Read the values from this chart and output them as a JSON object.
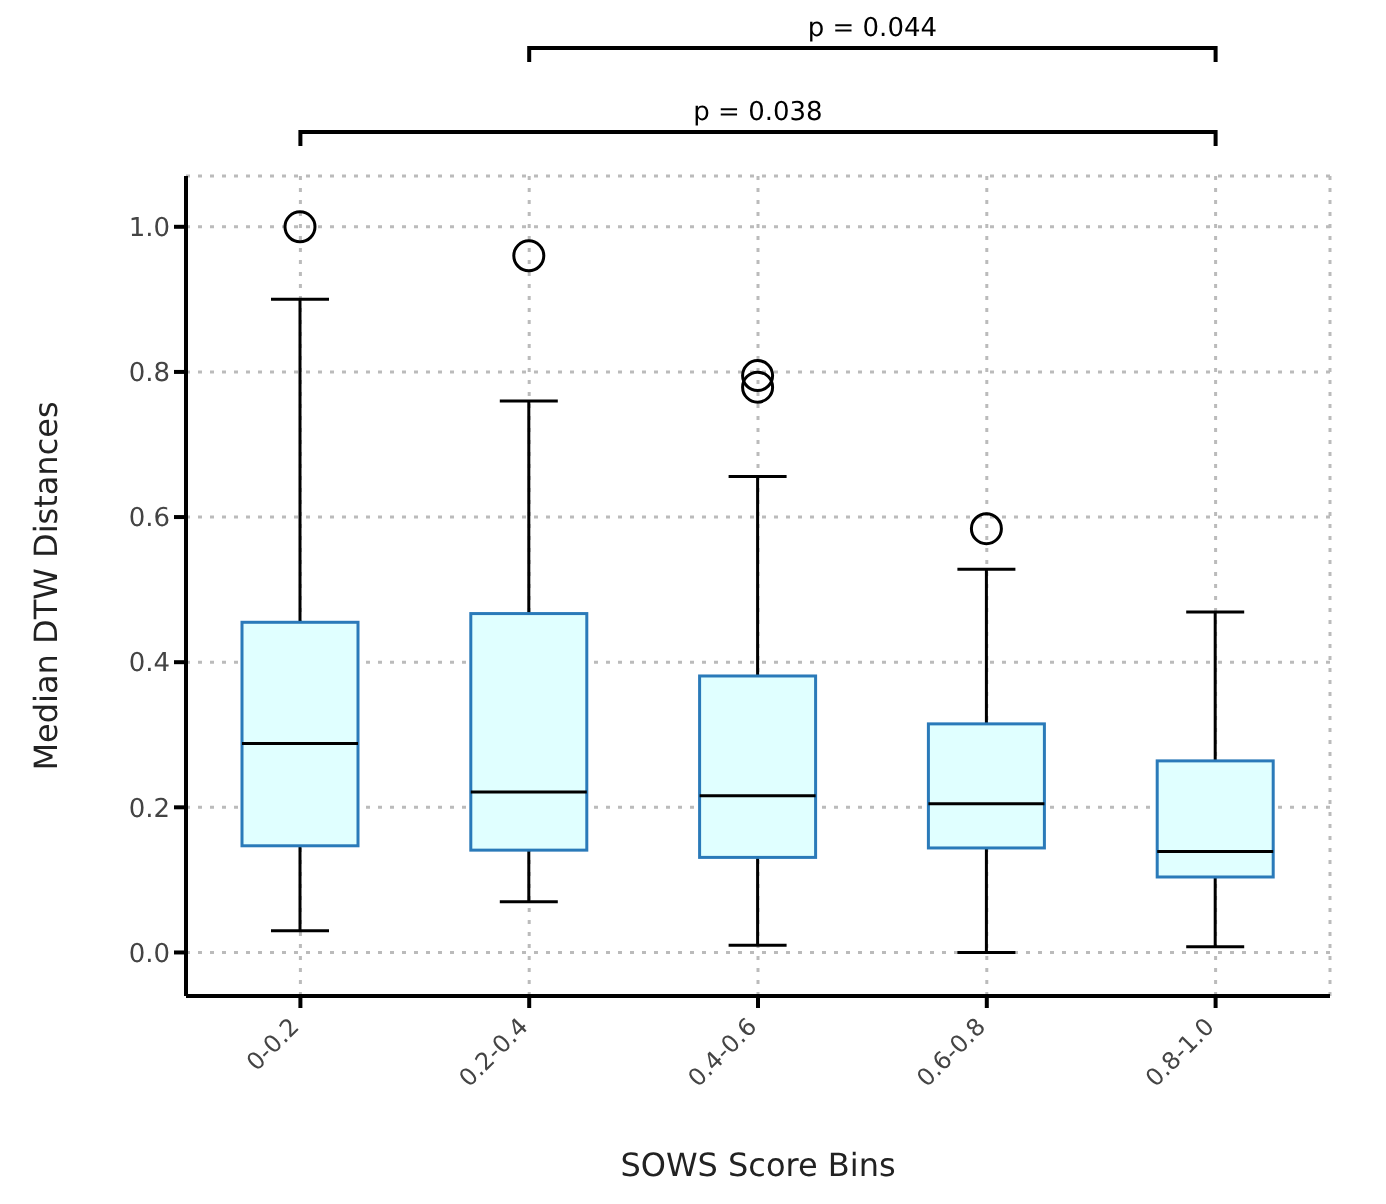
{
  "chart_data": {
    "type": "box",
    "xlabel": "SOWS Score Bins",
    "ylabel": "Median DTW Distances",
    "categories": [
      "0-0.2",
      "0.2-0.4",
      "0.4-0.6",
      "0.6-0.8",
      "0.8-1.0"
    ],
    "boxes": [
      {
        "low": 0.03,
        "q1": 0.147,
        "median": 0.288,
        "q3": 0.455,
        "high": 0.9,
        "outliers": [
          1.0
        ]
      },
      {
        "low": 0.07,
        "q1": 0.141,
        "median": 0.221,
        "q3": 0.467,
        "high": 0.76,
        "outliers": [
          0.96
        ]
      },
      {
        "low": 0.01,
        "q1": 0.131,
        "median": 0.216,
        "q3": 0.381,
        "high": 0.656,
        "outliers": [
          0.795,
          0.779
        ]
      },
      {
        "low": 0.0,
        "q1": 0.144,
        "median": 0.205,
        "q3": 0.315,
        "high": 0.528,
        "outliers": [
          0.584
        ]
      },
      {
        "low": 0.008,
        "q1": 0.104,
        "median": 0.139,
        "q3": 0.264,
        "high": 0.469
      }
    ],
    "colors": [
      "#e0ffff",
      "#e0ffff",
      "#e0ffff",
      "#e0ffff",
      "#e0ffff"
    ],
    "ylim": [
      -0.06,
      1.07
    ],
    "yticks": [
      {
        "value": 0,
        "label": "0.0"
      },
      {
        "value": 0.2,
        "label": "0.2"
      },
      {
        "value": 0.4,
        "label": "0.4"
      },
      {
        "value": 0.6,
        "label": "0.6"
      },
      {
        "value": 0.8,
        "label": "0.8"
      },
      {
        "value": 1,
        "label": "1.0"
      }
    ],
    "grid": true,
    "annotations": [
      "p = 0.038",
      "p = 0.044"
    ]
  }
}
